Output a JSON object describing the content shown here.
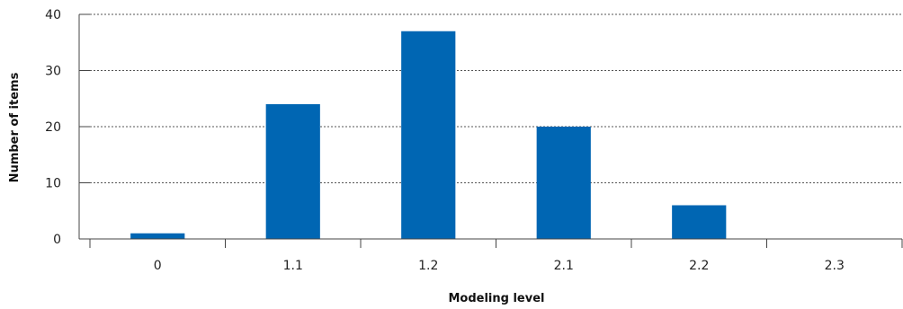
{
  "chart_data": {
    "type": "bar",
    "title": "",
    "xlabel": "Modeling level",
    "ylabel": "Number of items",
    "categories": [
      "0",
      "1.1",
      "1.2",
      "2.1",
      "2.2",
      "2.3"
    ],
    "values": [
      1,
      24,
      37,
      20,
      6,
      0
    ],
    "ylim": [
      0,
      40
    ],
    "yticks": [
      "0",
      "10",
      "20",
      "30",
      "40"
    ],
    "grid": true,
    "legend": "none",
    "bar_color": "#0066b3"
  }
}
